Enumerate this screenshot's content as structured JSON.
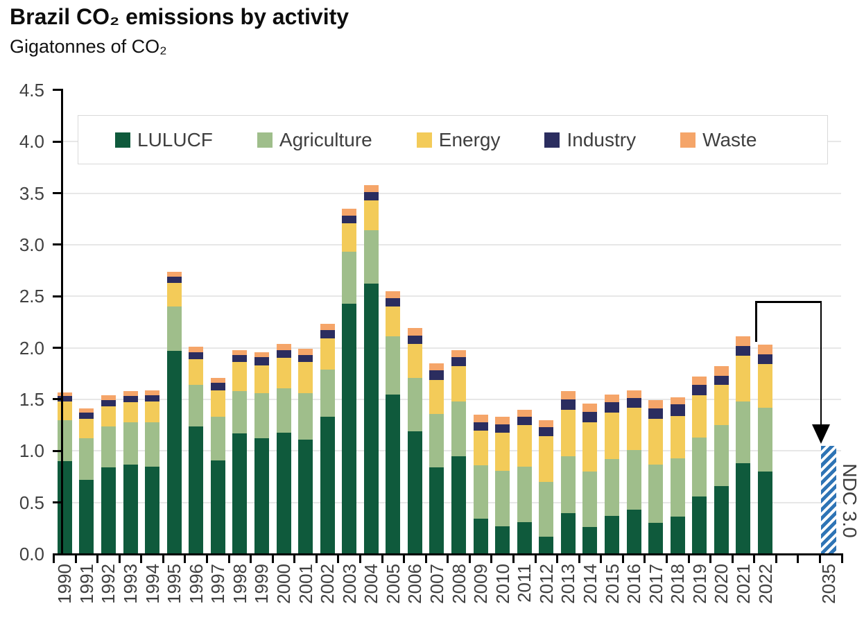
{
  "page": {
    "title": "Brazil CO₂ emissions by activity",
    "subtitle": "Gigatonnes of CO₂"
  },
  "chart_data": {
    "type": "bar",
    "stacked": true,
    "title": "Brazil CO₂ emissions by activity",
    "ylabel": "Gigatonnes of CO₂",
    "xlabel": "",
    "ylim": [
      0,
      4.5
    ],
    "ytick_step": 0.5,
    "y_tick_labels": [
      "4.5",
      "4.0",
      "3.5",
      "3.0",
      "2.5",
      "2.0",
      "1.5",
      "1.0",
      "0.5",
      "0.0"
    ],
    "grid": true,
    "legend_position": "top",
    "categories": [
      "1990",
      "1991",
      "1992",
      "1993",
      "1994",
      "1995",
      "1996",
      "1997",
      "1998",
      "1999",
      "2000",
      "2001",
      "2002",
      "2003",
      "2004",
      "2005",
      "2006",
      "2007",
      "2008",
      "2009",
      "2010",
      "2011",
      "2012",
      "2013",
      "2014",
      "2015",
      "2016",
      "2017",
      "2018",
      "2019",
      "2020",
      "2021",
      "2022"
    ],
    "series": [
      {
        "name": "LULUCF",
        "color": "#0F5A3C",
        "values": [
          0.9,
          0.72,
          0.84,
          0.87,
          0.85,
          1.97,
          1.24,
          0.91,
          1.17,
          1.12,
          1.18,
          1.11,
          1.33,
          2.43,
          2.62,
          1.55,
          1.19,
          0.84,
          0.95,
          0.34,
          0.27,
          0.31,
          0.17,
          0.4,
          0.26,
          0.37,
          0.43,
          0.3,
          0.36,
          0.56,
          0.66,
          0.88,
          0.8
        ]
      },
      {
        "name": "Agriculture",
        "color": "#9FBE8B",
        "values": [
          0.4,
          0.4,
          0.4,
          0.41,
          0.43,
          0.43,
          0.4,
          0.42,
          0.41,
          0.44,
          0.43,
          0.45,
          0.46,
          0.5,
          0.52,
          0.56,
          0.52,
          0.52,
          0.53,
          0.52,
          0.54,
          0.54,
          0.53,
          0.55,
          0.54,
          0.55,
          0.58,
          0.57,
          0.57,
          0.57,
          0.59,
          0.6,
          0.62
        ]
      },
      {
        "name": "Energy",
        "color": "#F3CB59",
        "values": [
          0.18,
          0.19,
          0.19,
          0.19,
          0.2,
          0.23,
          0.25,
          0.26,
          0.28,
          0.27,
          0.29,
          0.3,
          0.3,
          0.28,
          0.29,
          0.29,
          0.33,
          0.33,
          0.34,
          0.34,
          0.37,
          0.4,
          0.44,
          0.45,
          0.48,
          0.45,
          0.41,
          0.44,
          0.41,
          0.41,
          0.39,
          0.44,
          0.42
        ]
      },
      {
        "name": "Industry",
        "color": "#2B2D5F",
        "values": [
          0.05,
          0.06,
          0.06,
          0.06,
          0.06,
          0.06,
          0.07,
          0.07,
          0.07,
          0.08,
          0.08,
          0.07,
          0.08,
          0.07,
          0.08,
          0.08,
          0.08,
          0.09,
          0.09,
          0.08,
          0.08,
          0.08,
          0.09,
          0.1,
          0.1,
          0.1,
          0.09,
          0.1,
          0.11,
          0.1,
          0.09,
          0.1,
          0.1
        ]
      },
      {
        "name": "Waste",
        "color": "#F5A569",
        "values": [
          0.04,
          0.04,
          0.05,
          0.05,
          0.05,
          0.05,
          0.05,
          0.05,
          0.05,
          0.05,
          0.06,
          0.06,
          0.06,
          0.07,
          0.07,
          0.07,
          0.07,
          0.07,
          0.07,
          0.07,
          0.07,
          0.07,
          0.07,
          0.08,
          0.08,
          0.08,
          0.08,
          0.08,
          0.07,
          0.08,
          0.09,
          0.09,
          0.09
        ]
      }
    ],
    "projection_bar": {
      "category": "2035",
      "label": "NDC 3.0",
      "value": 1.05,
      "color": "#2E74B5",
      "pattern": "diagonal-stripes"
    },
    "annotation_arrow": {
      "description": "elbow arrow from top of 2022 bar pointing down to NDC 3.0 bar",
      "from_category": "2022",
      "to_category": "2035",
      "color": "#000000"
    }
  },
  "colors": {
    "grid": "#E7E7E7",
    "axis": "#000000",
    "tick_label": "#404040",
    "legend_border": "#D9D9D9",
    "ndc_label_text": "#3F3F3F",
    "background": "#FFFFFF"
  }
}
